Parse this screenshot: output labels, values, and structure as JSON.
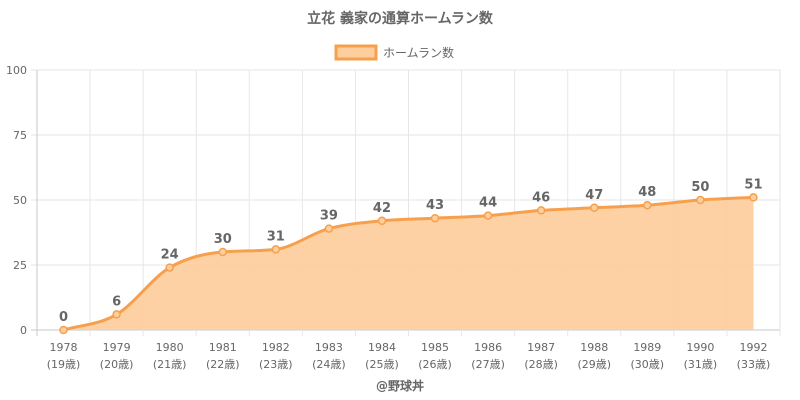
{
  "chart_data": {
    "type": "area",
    "title": "立花 義家の通算ホームラン数",
    "series": [
      {
        "name": "ホームラン数",
        "values": [
          0,
          6,
          24,
          30,
          31,
          39,
          42,
          43,
          44,
          46,
          47,
          48,
          50,
          51
        ]
      }
    ],
    "categories": [
      "1978",
      "1979",
      "1980",
      "1981",
      "1982",
      "1983",
      "1984",
      "1985",
      "1986",
      "1987",
      "1988",
      "1989",
      "1990",
      "1992"
    ],
    "age_labels": [
      "(19歳)",
      "(20歳)",
      "(21歳)",
      "(22歳)",
      "(23歳)",
      "(24歳)",
      "(25歳)",
      "(26歳)",
      "(27歳)",
      "(28歳)",
      "(29歳)",
      "(30歳)",
      "(31歳)",
      "(33歳)"
    ],
    "ylim": [
      0,
      100
    ],
    "yticks": [
      0,
      25,
      50,
      75,
      100
    ],
    "legend_position": "top-center",
    "grid": true,
    "colors": {
      "line": "#f6a04d",
      "fill": "#fdcf9e",
      "grid": "#e6e6e6",
      "axis": "#c8c8c8",
      "text": "#666666"
    }
  },
  "credit": "@野球丼"
}
